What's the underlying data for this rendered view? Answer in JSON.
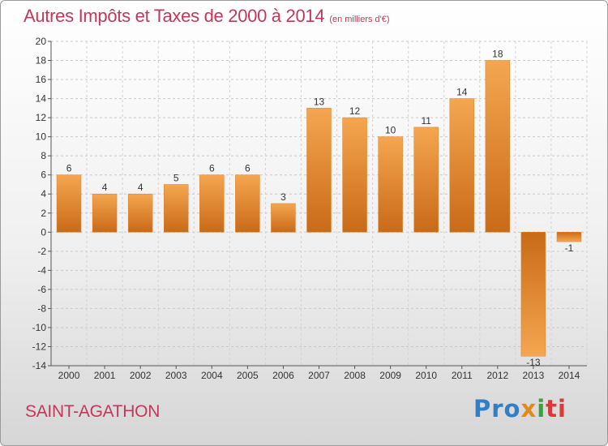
{
  "header": {
    "title": "Autres Impôts et Taxes de 2000 à 2014",
    "subtitle": "(en milliers d'€)"
  },
  "footer": {
    "town": "SAINT-AGATHON",
    "logo": [
      "Pro",
      "x",
      "i",
      "ti"
    ]
  },
  "colors": {
    "title": "#c0395a",
    "bar_light": "#f5a650",
    "bar_dark": "#c96a18"
  },
  "chart_data": {
    "type": "bar",
    "title": "Autres Impôts et Taxes de 2000 à 2014",
    "subtitle": "(en milliers d'€)",
    "categories": [
      "2000",
      "2001",
      "2002",
      "2003",
      "2004",
      "2005",
      "2006",
      "2007",
      "2008",
      "2009",
      "2010",
      "2011",
      "2012",
      "2013",
      "2014"
    ],
    "values": [
      6,
      4,
      4,
      5,
      6,
      6,
      3,
      13,
      12,
      10,
      11,
      14,
      18,
      -13,
      -1
    ],
    "ylim": [
      -14,
      20
    ],
    "yticks": [
      20,
      18,
      16,
      14,
      12,
      10,
      8,
      6,
      4,
      2,
      0,
      -2,
      -4,
      -6,
      -8,
      -10,
      -12,
      -14
    ],
    "grid": true,
    "xlabel": "",
    "ylabel": ""
  }
}
